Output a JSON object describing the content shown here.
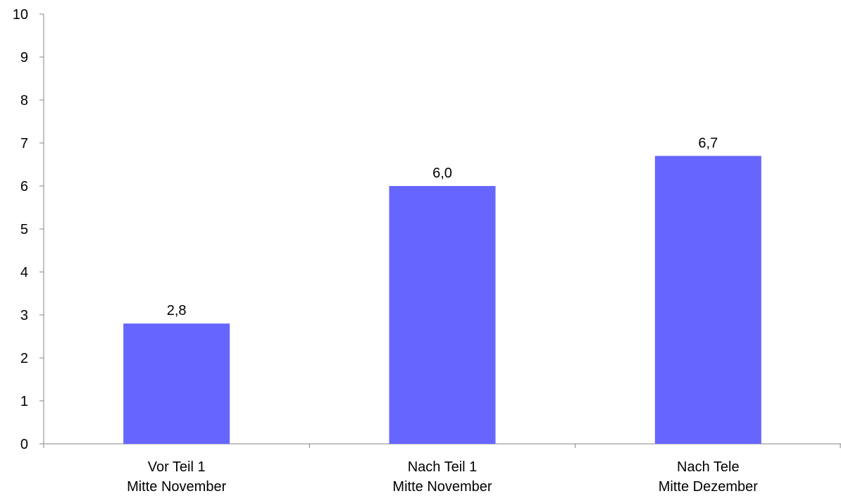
{
  "chart_data": {
    "type": "bar",
    "categories": [
      [
        "Vor Teil 1",
        "Mitte November"
      ],
      [
        "Nach Teil 1",
        "Mitte November"
      ],
      [
        "Nach Tele",
        "Mitte Dezember"
      ]
    ],
    "values": [
      2.8,
      6.0,
      6.7
    ],
    "data_labels": [
      "2,8",
      "6,0",
      "6,7"
    ],
    "title": "",
    "xlabel": "",
    "ylabel": "",
    "ylim": [
      0,
      10
    ],
    "yticks": [
      0,
      1,
      2,
      3,
      4,
      5,
      6,
      7,
      8,
      9,
      10
    ],
    "grid": false,
    "legend": "none",
    "colors": {
      "bar": "#6666ff",
      "axis": "#868686"
    }
  }
}
